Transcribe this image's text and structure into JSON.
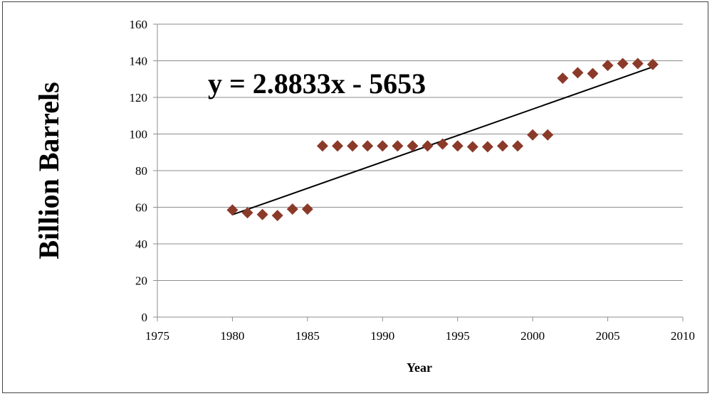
{
  "chart_data": {
    "type": "scatter",
    "title": "",
    "xlabel": "Year",
    "ylabel": "Billion Barrels",
    "xlim": [
      1975,
      2010
    ],
    "ylim": [
      0,
      160
    ],
    "x_ticks": [
      1975,
      1980,
      1985,
      1990,
      1995,
      2000,
      2005,
      2010
    ],
    "y_ticks": [
      0,
      20,
      40,
      60,
      80,
      100,
      120,
      140,
      160
    ],
    "grid": "horizontal",
    "legend": "none",
    "marker": "diamond",
    "colors": {
      "marker": "#8B3A2A",
      "trendline": "#000000",
      "grid": "#8c8c8c"
    },
    "series": [
      {
        "x": [
          1980,
          1981,
          1982,
          1983,
          1984,
          1985,
          1986,
          1987,
          1988,
          1989,
          1990,
          1991,
          1992,
          1993,
          1994,
          1995,
          1996,
          1997,
          1998,
          1999,
          2000,
          2001,
          2002,
          2003,
          2004,
          2005,
          2006,
          2007,
          2008
        ],
        "y": [
          58.5,
          57,
          56,
          55.5,
          59,
          59,
          93.5,
          93.5,
          93.5,
          93.5,
          93.5,
          93.5,
          93.5,
          93.5,
          94.5,
          93.5,
          93,
          93,
          93.5,
          93.5,
          99.5,
          99.5,
          130.5,
          133.5,
          133,
          137.5,
          138.5,
          138.5,
          138
        ]
      }
    ],
    "trendline": {
      "equation": "y = 2.8833x - 5653",
      "slope": 2.8833,
      "intercept": -5653,
      "x_range": [
        1980,
        2008
      ]
    }
  }
}
